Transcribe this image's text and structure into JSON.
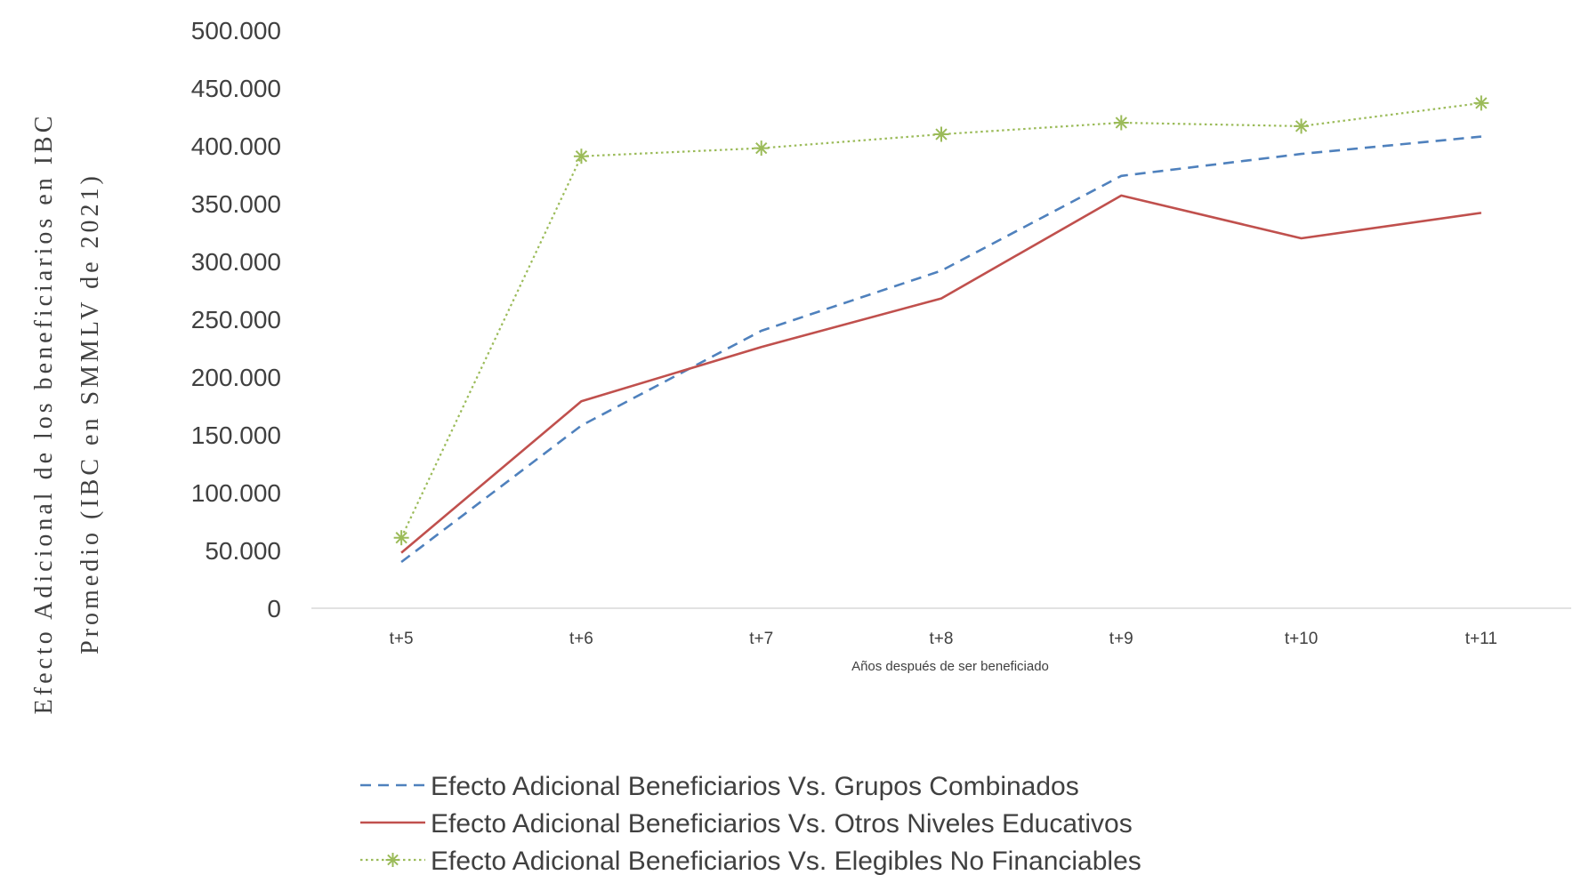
{
  "chart_data": {
    "type": "line",
    "categories": [
      "t+5",
      "t+6",
      "t+7",
      "t+8",
      "t+9",
      "t+10",
      "t+11"
    ],
    "series": [
      {
        "name": "Efecto Adicional Beneficiarios Vs. Grupos Combinados",
        "values": [
          40000,
          158000,
          240000,
          292000,
          374000,
          393000,
          408000
        ],
        "color": "#4F81BD",
        "style": "dashed"
      },
      {
        "name": "Efecto Adicional Beneficiarios Vs. Otros Niveles Educativos",
        "values": [
          48000,
          179000,
          226000,
          268000,
          357000,
          320000,
          342000
        ],
        "color": "#C0504D",
        "style": "solid"
      },
      {
        "name": "Efecto Adicional Beneficiarios Vs. Elegibles No Financiables",
        "values": [
          61000,
          391000,
          398000,
          410000,
          420000,
          417000,
          437000
        ],
        "color": "#9BBB59",
        "style": "dotted",
        "marker": "asterisk"
      }
    ],
    "ylim": [
      0,
      500000
    ],
    "yticks": [
      "0",
      "50.000",
      "100.000",
      "150.000",
      "200.000",
      "250.000",
      "300.000",
      "350.000",
      "400.000",
      "450.000",
      "500.000"
    ],
    "xlabel": "Años después de ser beneficiado",
    "ylabel_lines": [
      "Efecto Adicional de los beneficiarios en IBC",
      "Promedio (IBC en SMMLV de 2021)"
    ],
    "grid": false,
    "legend_position": "bottom"
  }
}
